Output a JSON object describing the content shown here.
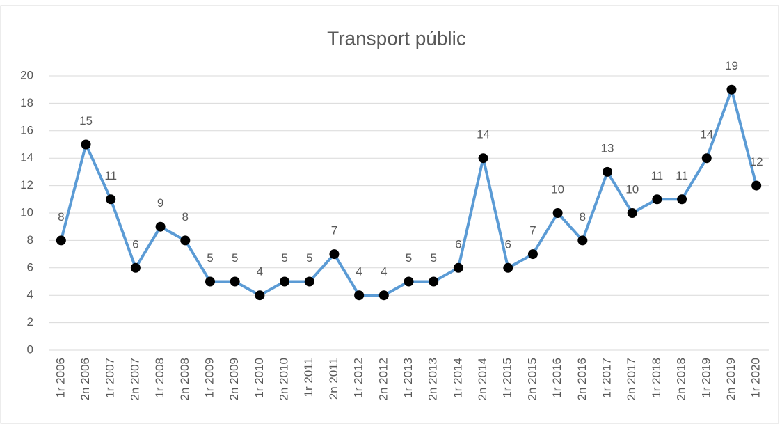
{
  "chart_data": {
    "type": "line",
    "title": "Transport públic",
    "categories": [
      "1r 2006",
      "2n 2006",
      "1r 2007",
      "2n 2007",
      "1r 2008",
      "2n 2008",
      "1r 2009",
      "2n 2009",
      "1r 2010",
      "2n 2010",
      "1r 2011",
      "2n 2011",
      "1r 2012",
      "2n 2012",
      "1r 2013",
      "2n 2013",
      "1r 2014",
      "2n 2014",
      "1r 2015",
      "2n 2015",
      "1r 2016",
      "2n 2016",
      "1r 2017",
      "2n 2017",
      "1r 2018",
      "2n 2018",
      "1r 2019",
      "2n 2019",
      "1r 2020"
    ],
    "values": [
      8,
      15,
      11,
      6,
      9,
      8,
      5,
      5,
      4,
      5,
      5,
      7,
      4,
      4,
      5,
      5,
      6,
      14,
      6,
      7,
      10,
      8,
      13,
      10,
      11,
      11,
      14,
      19,
      12
    ],
    "color": "#5b9bd5",
    "marker_color": "#000000",
    "ylim": [
      0,
      20
    ],
    "yticks": [
      0,
      2,
      4,
      6,
      8,
      10,
      12,
      14,
      16,
      18,
      20
    ],
    "grid": true
  }
}
